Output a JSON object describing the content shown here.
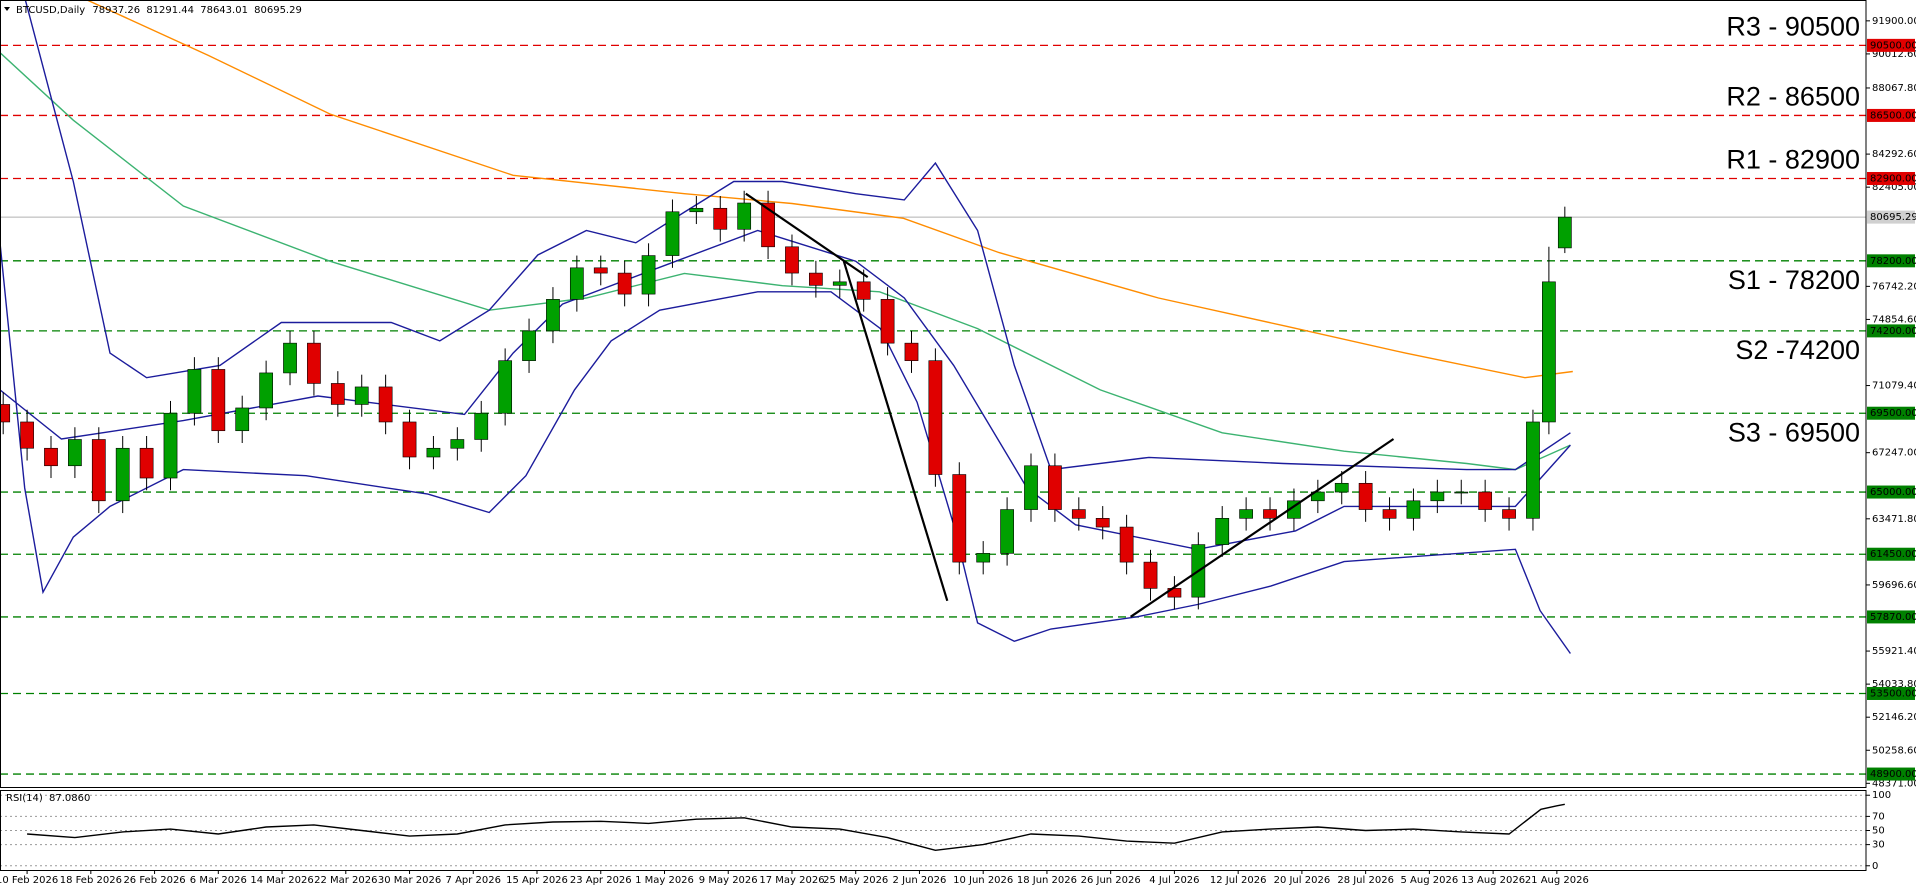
{
  "chart_data": {
    "type": "candlestick",
    "title": "BTCUSD,Daily",
    "xlim": [
      -3.4,
      230.8
    ],
    "xticks": [
      {
        "value": 0,
        "label": "10 Feb 2026"
      },
      {
        "value": 8,
        "label": "18 Feb 2026"
      },
      {
        "value": 16,
        "label": "26 Feb 2026"
      },
      {
        "value": 24,
        "label": "6 Mar 2026"
      },
      {
        "value": 32,
        "label": "14 Mar 2026"
      },
      {
        "value": 40,
        "label": "22 Mar 2026"
      },
      {
        "value": 48,
        "label": "30 Mar 2026"
      },
      {
        "value": 56,
        "label": "7 Apr 2026"
      },
      {
        "value": 64,
        "label": "15 Apr 2026"
      },
      {
        "value": 72,
        "label": "23 Apr 2026"
      },
      {
        "value": 80,
        "label": "1 May 2026"
      },
      {
        "value": 88,
        "label": "9 May 2026"
      },
      {
        "value": 96,
        "label": "17 May 2026"
      },
      {
        "value": 104,
        "label": "25 May 2026"
      },
      {
        "value": 112,
        "label": "2 Jun 2026"
      },
      {
        "value": 120,
        "label": "10 Jun 2026"
      },
      {
        "value": 128,
        "label": "18 Jun 2026"
      },
      {
        "value": 136,
        "label": "26 Jun 2026"
      },
      {
        "value": 144,
        "label": "4 Jul 2026"
      },
      {
        "value": 152,
        "label": "12 Jul 2026"
      },
      {
        "value": 160,
        "label": "20 Jul 2026"
      },
      {
        "value": 168,
        "label": "28 Jul 2026"
      },
      {
        "value": 176,
        "label": "5 Aug 2026"
      },
      {
        "value": 184,
        "label": "13 Aug 2026"
      },
      {
        "value": 192,
        "label": "21 Aug 2026"
      }
    ],
    "ylim": [
      48161,
      93090
    ],
    "yticks": [
      {
        "value": 91900,
        "label": "91900.00"
      },
      {
        "value": 90012.6,
        "label": "90012.60"
      },
      {
        "value": 88067.8,
        "label": "88067.80"
      },
      {
        "value": 84292.6,
        "label": "84292.60"
      },
      {
        "value": 82405,
        "label": "82405.00"
      },
      {
        "value": 76742.2,
        "label": "76742.20"
      },
      {
        "value": 74854.6,
        "label": "74854.60"
      },
      {
        "value": 71079.4,
        "label": "71079.40"
      },
      {
        "value": 67247,
        "label": "67247.00"
      },
      {
        "value": 63471.8,
        "label": "63471.80"
      },
      {
        "value": 59696.6,
        "label": "59696.60"
      },
      {
        "value": 55921.4,
        "label": "55921.40"
      },
      {
        "value": 54033.8,
        "label": "54033.80"
      },
      {
        "value": 52146.2,
        "label": "52146.20"
      },
      {
        "value": 50258.6,
        "label": "50258.60"
      },
      {
        "value": 48371,
        "label": "48371.00"
      }
    ],
    "candles": {
      "up_color": "#00a000",
      "down_color": "#e00000",
      "x": [
        -3,
        0,
        3,
        6,
        9,
        12,
        15,
        18,
        21,
        24,
        27,
        30,
        33,
        36,
        39,
        42,
        45,
        48,
        51,
        54,
        57,
        60,
        63,
        66,
        69,
        72,
        75,
        78,
        81,
        84,
        87,
        90,
        93,
        96,
        99,
        102,
        105,
        108,
        111,
        114,
        117,
        120,
        123,
        126,
        129,
        132,
        135,
        138,
        141,
        144,
        147,
        150,
        153,
        156,
        159,
        162,
        165,
        168,
        171,
        174,
        177,
        180,
        183,
        186,
        189,
        191,
        193
      ],
      "open": [
        70000,
        69000,
        67500,
        66500,
        68000,
        64500,
        67500,
        65800,
        69500,
        72000,
        68500,
        69800,
        71800,
        73500,
        71200,
        70000,
        71000,
        69000,
        67000,
        67500,
        68000,
        69500,
        72500,
        74200,
        76000,
        77800,
        77500,
        76300,
        78500,
        81000,
        81200,
        80000,
        81500,
        79000,
        77500,
        76800,
        77000,
        76000,
        73500,
        72500,
        66000,
        61000,
        61500,
        64000,
        66500,
        64000,
        63500,
        63000,
        61000,
        59500,
        59000,
        62000,
        63500,
        64000,
        63500,
        64500,
        65000,
        65500,
        64000,
        63500,
        64500,
        65000,
        65000,
        64000,
        63500,
        69000,
        78937.26
      ],
      "high": [
        70700,
        69700,
        68200,
        68700,
        68700,
        68200,
        68200,
        70200,
        72700,
        72700,
        70500,
        72500,
        74200,
        74200,
        71900,
        71700,
        71700,
        69700,
        68200,
        68700,
        70200,
        73200,
        74900,
        76700,
        78500,
        78500,
        78200,
        79200,
        81700,
        81900,
        81900,
        82200,
        82200,
        79700,
        78200,
        77700,
        77700,
        76700,
        74200,
        73200,
        66700,
        62200,
        64700,
        67200,
        67200,
        64700,
        64200,
        63700,
        61700,
        60200,
        62700,
        64200,
        64700,
        64700,
        65200,
        65700,
        66200,
        66200,
        64700,
        65200,
        65700,
        65700,
        65700,
        64700,
        69700,
        79000,
        81291.44
      ],
      "low": [
        68300,
        66800,
        65800,
        65800,
        63800,
        63800,
        65100,
        65100,
        68800,
        67800,
        67800,
        69100,
        71100,
        70500,
        69300,
        69300,
        68300,
        66300,
        66300,
        66800,
        67300,
        68800,
        71800,
        73500,
        75300,
        76800,
        75600,
        75600,
        77800,
        80300,
        79300,
        79300,
        78300,
        76800,
        76100,
        76100,
        75300,
        72800,
        71800,
        65300,
        60300,
        60300,
        60800,
        63300,
        63300,
        62800,
        62300,
        60300,
        58800,
        58300,
        58300,
        61300,
        62800,
        62800,
        62800,
        63800,
        64300,
        63300,
        62800,
        62800,
        63800,
        64300,
        63300,
        62800,
        62800,
        68300,
        78643.01
      ],
      "close": [
        69000,
        67500,
        66500,
        68000,
        64500,
        67500,
        65800,
        69500,
        72000,
        68500,
        69800,
        71800,
        73500,
        71200,
        70000,
        71000,
        69000,
        67000,
        67500,
        68000,
        69500,
        72500,
        74200,
        76000,
        77800,
        77500,
        76300,
        78500,
        81000,
        81200,
        80000,
        81500,
        79000,
        77500,
        76800,
        77000,
        76000,
        73500,
        72500,
        66000,
        61000,
        61500,
        64000,
        66500,
        64000,
        63500,
        63000,
        61000,
        59500,
        59000,
        62000,
        63500,
        64000,
        63500,
        64500,
        65000,
        65500,
        64000,
        63500,
        64500,
        65000,
        65000,
        64000,
        63500,
        69000,
        77000,
        80695.29
      ]
    },
    "lines": [
      {
        "color": "#ff8c00",
        "x": [
          7,
          22.7,
          38,
          61,
          82.5,
          96,
          110,
          122,
          142,
          158,
          173,
          188,
          194
        ],
        "values": [
          93200,
          89940,
          86580,
          83080,
          82030,
          81470,
          80630,
          78670,
          76080,
          74470,
          72930,
          71530,
          71880
        ]
      },
      {
        "color": "#3cb371",
        "x": [
          -3.4,
          5.8,
          19.6,
          38,
          58,
          70.2,
          82.5,
          94.8,
          107,
          119.3,
          134.7,
          150,
          165.3,
          180.7,
          186.8,
          193.7
        ],
        "values": [
          90080,
          86230,
          81330,
          78180,
          75380,
          76080,
          77480,
          76780,
          76430,
          74330,
          70830,
          68380,
          67330,
          66630,
          66280,
          67680
        ]
      },
      {
        "color": "#1c1c9c",
        "x": [
          -0.3,
          5.8,
          10.4,
          15,
          24.2,
          31.9,
          45.7,
          51.8,
          58,
          64.1,
          70.2,
          76.4,
          82.5,
          88.7,
          94.8,
          104,
          110.1,
          114,
          119.3,
          123.9,
          128.5,
          140.8,
          157.7,
          180.7,
          186.8,
          193.7
        ],
        "values": [
          93230,
          82730,
          72930,
          71530,
          72230,
          74680,
          74680,
          73630,
          75380,
          78530,
          79930,
          79230,
          80980,
          82730,
          82730,
          82030,
          81680,
          83780,
          79930,
          72230,
          66280,
          66980,
          66630,
          66280,
          66280,
          68380
        ]
      },
      {
        "color": "#1c1c9c",
        "x": [
          -3.4,
          4.3,
          19.6,
          36.5,
          54.9,
          61,
          67.2,
          79.4,
          91.7,
          104,
          110.1,
          116.3,
          125.5,
          131.6,
          146.9,
          159.2,
          165.3,
          186.8,
          193.7
        ],
        "values": [
          70830,
          68030,
          69080,
          70480,
          69430,
          72930,
          75730,
          77830,
          79930,
          78180,
          76080,
          72230,
          65230,
          63130,
          61730,
          62780,
          64180,
          64180,
          67680
        ]
      },
      {
        "color": "#1c1c9c",
        "x": [
          -3.4,
          -0.3,
          2,
          5.8,
          10.4,
          19.6,
          35,
          50.3,
          58,
          62.6,
          68.7,
          73.3,
          79.4,
          91.7,
          100.9,
          107.1,
          111.7,
          116.3,
          119.3,
          123.9,
          128.5,
          139.3,
          146.9,
          156.1,
          165.3,
          186.8,
          189.9,
          193.7
        ],
        "values": [
          79230,
          65230,
          59280,
          62430,
          64180,
          66280,
          65930,
          64880,
          63830,
          65930,
          70830,
          73630,
          75380,
          76430,
          76430,
          74330,
          70130,
          63130,
          57530,
          56480,
          57180,
          57880,
          58580,
          59630,
          61030,
          61730,
          58230,
          55780
        ]
      }
    ],
    "trendlines": [
      {
        "color": "#000000",
        "x": [
          90.2,
          105.5
        ],
        "values": [
          82030,
          77270
        ]
      },
      {
        "color": "#000000",
        "x": [
          102.5,
          115.5
        ],
        "values": [
          78180,
          58790
        ]
      },
      {
        "color": "#000000",
        "x": [
          138.5,
          171.5
        ],
        "values": [
          57880,
          68030
        ]
      }
    ],
    "levels": [
      {
        "value": 90500,
        "label": "90500.00",
        "color": "#e00000",
        "note": "R3 - 90500"
      },
      {
        "value": 86500,
        "label": "86500.00",
        "color": "#e00000",
        "note": "R2 - 86500"
      },
      {
        "value": 82900,
        "label": "82900.00",
        "color": "#e00000",
        "note": "R1 - 82900"
      },
      {
        "value": 78200,
        "label": "78200.00",
        "color": "#008000",
        "note": "S1 - 78200"
      },
      {
        "value": 74200,
        "label": "74200.00",
        "color": "#008000",
        "note": "S2 -74200"
      },
      {
        "value": 69500,
        "label": "69500.00",
        "color": "#008000",
        "note": "S3 - 69500"
      },
      {
        "value": 65000,
        "label": "65000.00",
        "color": "#008000"
      },
      {
        "value": 61450,
        "label": "61450.00",
        "color": "#008000"
      },
      {
        "value": 57870,
        "label": "57870.00",
        "color": "#008000"
      },
      {
        "value": 53500,
        "label": "53500.00",
        "color": "#008000"
      },
      {
        "value": 48900,
        "label": "48900.00",
        "color": "#008000"
      }
    ],
    "rsi": {
      "type": "line",
      "title": "RSI(14)",
      "current": {
        "value": 87.086,
        "label": "87.0860"
      },
      "color": "#000000",
      "ylim": [
        -6,
        106
      ],
      "yticks": [
        100,
        70,
        50,
        30,
        0
      ],
      "x": [
        0,
        6,
        12,
        18,
        24,
        30,
        36,
        42,
        48,
        54,
        60,
        66,
        72,
        78,
        84,
        90,
        96,
        102,
        108,
        114,
        120,
        126,
        132,
        138,
        144,
        150,
        156,
        162,
        168,
        174,
        180,
        186,
        190,
        192,
        193
      ],
      "values": [
        45,
        40,
        48,
        52,
        45,
        55,
        58,
        50,
        42,
        45,
        58,
        62,
        63,
        60,
        66,
        68,
        55,
        52,
        40,
        22,
        30,
        45,
        42,
        35,
        32,
        48,
        52,
        55,
        50,
        52,
        48,
        45,
        80,
        85,
        87.086
      ]
    }
  }
}
